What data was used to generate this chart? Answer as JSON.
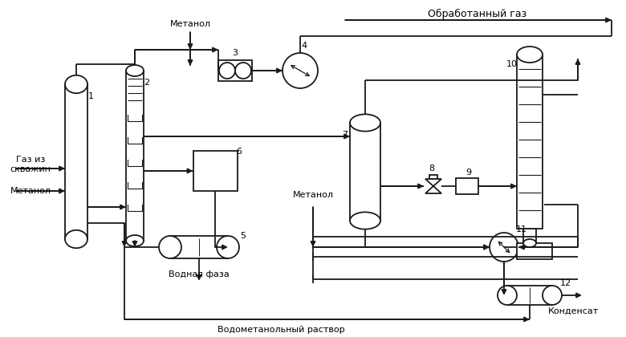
{
  "bg": "#ffffff",
  "lc": "#1a1a1a",
  "lw": 1.3,
  "fw": 7.8,
  "fh": 4.2,
  "labels": {
    "obrab_gaz": "Обработанный газ",
    "gaz_iz": "Газ из\nскважин",
    "metanol_in": "Метанол",
    "metanol_top": "Метанол",
    "metanol_mid": "Метанол",
    "vodn_faza": "Водная фаза",
    "vodometanol": "Водометанольный раствор",
    "kondensat": "Конденсат"
  }
}
